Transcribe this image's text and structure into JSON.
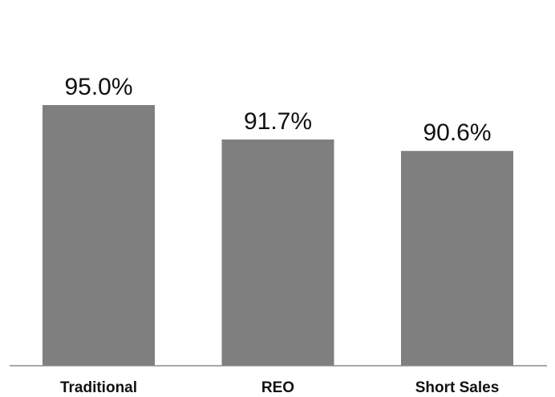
{
  "chart_data": {
    "type": "bar",
    "categories": [
      "Traditional",
      "REO",
      "Short Sales"
    ],
    "values": [
      95.0,
      91.7,
      90.6
    ],
    "value_labels": [
      "95.0%",
      "91.7%",
      "90.6%"
    ],
    "ylim": [
      70,
      100
    ],
    "grid": false,
    "legend": "none",
    "bar_color": "#7f7f7f",
    "baseline_color": "#8c8c8c",
    "text_color": "#111111"
  }
}
